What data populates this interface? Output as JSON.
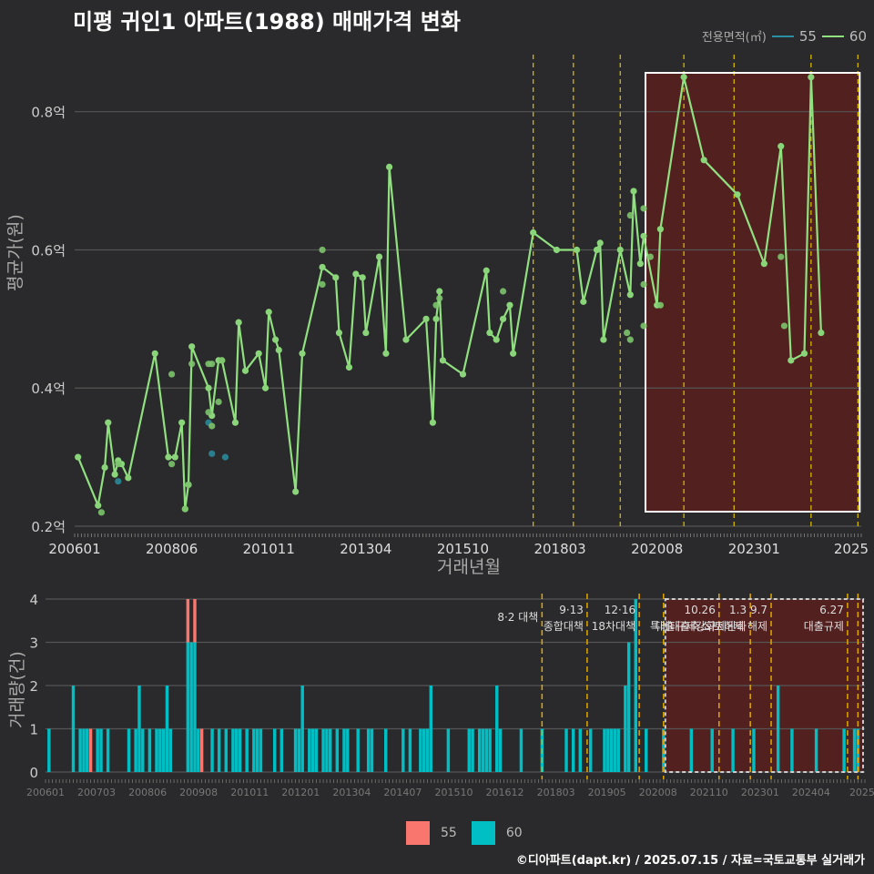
{
  "title": "미평 귀인1 아파트(1988) 매매가격 변화",
  "footer": "©디아파트(dapt.kr) / 2025.07.15 / 자료=국토교통부 실거래가",
  "colors": {
    "background": "#2a2a2c",
    "line60": "#90e080",
    "area55": "#2a6f7a",
    "bar55": "#f8766d",
    "bar60": "#00bfc4",
    "policy": "#d4b800",
    "highlight": "#5a1e1e"
  },
  "chart_data": [
    {
      "type": "line",
      "ylabel": "평균가(원)",
      "xlabel": "거래년월",
      "x_unit": "month index since 200601",
      "x_range": [
        0,
        235
      ],
      "ylim": [
        0.2,
        0.88
      ],
      "y_ticks": [
        {
          "v": 0.2,
          "label": "0.2억"
        },
        {
          "v": 0.4,
          "label": "0.4억"
        },
        {
          "v": 0.6,
          "label": "0.6억"
        },
        {
          "v": 0.8,
          "label": "0.8억"
        }
      ],
      "x_ticks": [
        "200601",
        "200806",
        "201011",
        "201304",
        "201510",
        "201803",
        "202008",
        "202301",
        "2025"
      ],
      "legend": {
        "title": "전용면적(㎡)",
        "items": [
          "55",
          "60"
        ]
      },
      "series": [
        {
          "name": "60",
          "line": [
            [
              1,
              0.3
            ],
            [
              7,
              0.23
            ],
            [
              9,
              0.285
            ],
            [
              10,
              0.35
            ],
            [
              12,
              0.275
            ],
            [
              13,
              0.295
            ],
            [
              14,
              0.29
            ],
            [
              16,
              0.27
            ],
            [
              24,
              0.45
            ],
            [
              28,
              0.3
            ],
            [
              30,
              0.3
            ],
            [
              32,
              0.35
            ],
            [
              33,
              0.225
            ],
            [
              34,
              0.26
            ],
            [
              35,
              0.46
            ],
            [
              40,
              0.4
            ],
            [
              41,
              0.36
            ],
            [
              43,
              0.44
            ],
            [
              44,
              0.44
            ],
            [
              48,
              0.35
            ],
            [
              49,
              0.495
            ],
            [
              51,
              0.425
            ],
            [
              55,
              0.45
            ],
            [
              57,
              0.4
            ],
            [
              58,
              0.51
            ],
            [
              60,
              0.47
            ],
            [
              61,
              0.455
            ],
            [
              66,
              0.25
            ],
            [
              68,
              0.45
            ],
            [
              74,
              0.575
            ],
            [
              78,
              0.56
            ],
            [
              79,
              0.48
            ],
            [
              82,
              0.43
            ],
            [
              84,
              0.565
            ],
            [
              86,
              0.56
            ],
            [
              87,
              0.48
            ],
            [
              91,
              0.59
            ],
            [
              93,
              0.45
            ],
            [
              94,
              0.72
            ],
            [
              99,
              0.47
            ],
            [
              105,
              0.5
            ],
            [
              107,
              0.35
            ],
            [
              108,
              0.5
            ],
            [
              109,
              0.54
            ],
            [
              110,
              0.44
            ],
            [
              116,
              0.42
            ],
            [
              123,
              0.57
            ],
            [
              124,
              0.48
            ],
            [
              126,
              0.47
            ],
            [
              128,
              0.5
            ],
            [
              130,
              0.52
            ],
            [
              131,
              0.45
            ],
            [
              137,
              0.625
            ],
            [
              144,
              0.6
            ],
            [
              150,
              0.6
            ],
            [
              152,
              0.525
            ],
            [
              156,
              0.6
            ],
            [
              157,
              0.61
            ],
            [
              158,
              0.47
            ],
            [
              163,
              0.6
            ],
            [
              166,
              0.535
            ],
            [
              167,
              0.685
            ],
            [
              169,
              0.58
            ],
            [
              170,
              0.62
            ],
            [
              174,
              0.52
            ],
            [
              175,
              0.63
            ],
            [
              182,
              0.85
            ],
            [
              188,
              0.73
            ],
            [
              198,
              0.68
            ],
            [
              206,
              0.58
            ],
            [
              211,
              0.75
            ],
            [
              214,
              0.44
            ],
            [
              218,
              0.45
            ],
            [
              220,
              0.85
            ],
            [
              223,
              0.48
            ]
          ],
          "points": [
            [
              8,
              0.22
            ],
            [
              13,
              0.29
            ],
            [
              29,
              0.42
            ],
            [
              29,
              0.29
            ],
            [
              33,
              0.225
            ],
            [
              34,
              0.26
            ],
            [
              35,
              0.435
            ],
            [
              40,
              0.435
            ],
            [
              41,
              0.435
            ],
            [
              40,
              0.365
            ],
            [
              41,
              0.345
            ],
            [
              43,
              0.38
            ],
            [
              44,
              0.44
            ],
            [
              74,
              0.55
            ],
            [
              74,
              0.6
            ],
            [
              108,
              0.52
            ],
            [
              109,
              0.53
            ],
            [
              128,
              0.54
            ],
            [
              165,
              0.48
            ],
            [
              166,
              0.47
            ],
            [
              166,
              0.65
            ],
            [
              170,
              0.55
            ],
            [
              170,
              0.66
            ],
            [
              170,
              0.49
            ],
            [
              172,
              0.59
            ],
            [
              175,
              0.52
            ],
            [
              211,
              0.59
            ],
            [
              212,
              0.49
            ]
          ]
        },
        {
          "name": "55",
          "points": [
            [
              13,
              0.265
            ],
            [
              40,
              0.35
            ],
            [
              41,
              0.305
            ],
            [
              45,
              0.3
            ]
          ]
        }
      ],
      "policy_lines": [
        137,
        149,
        163,
        182,
        197,
        220,
        234
      ],
      "highlight_range": [
        170,
        234
      ]
    },
    {
      "type": "bar",
      "ylabel": "거래량(건)",
      "ylim": [
        0,
        4
      ],
      "y_ticks": [
        0,
        1,
        2,
        3,
        4
      ],
      "x_ticks": [
        "200601",
        "200703",
        "200806",
        "200908",
        "201011",
        "201201",
        "201304",
        "201407",
        "201510",
        "201612",
        "201803",
        "201905",
        "202008",
        "202110",
        "202301",
        "202404",
        "2025"
      ],
      "series": [
        {
          "name": "55",
          "bars": [
            [
              13,
              1
            ],
            [
              41,
              1
            ],
            [
              43,
              1
            ],
            [
              45,
              1
            ]
          ]
        },
        {
          "name": "60",
          "bars": [
            [
              1,
              1
            ],
            [
              8,
              2
            ],
            [
              10,
              1
            ],
            [
              11,
              1
            ],
            [
              12,
              1
            ],
            [
              15,
              1
            ],
            [
              16,
              1
            ],
            [
              18,
              1
            ],
            [
              24,
              1
            ],
            [
              26,
              1
            ],
            [
              27,
              2
            ],
            [
              28,
              1
            ],
            [
              30,
              1
            ],
            [
              32,
              1
            ],
            [
              33,
              1
            ],
            [
              34,
              1
            ],
            [
              35,
              2
            ],
            [
              36,
              1
            ],
            [
              41,
              3
            ],
            [
              42,
              3
            ],
            [
              43,
              3
            ],
            [
              44,
              1
            ],
            [
              48,
              1
            ],
            [
              50,
              1
            ],
            [
              52,
              1
            ],
            [
              54,
              1
            ],
            [
              55,
              1
            ],
            [
              56,
              1
            ],
            [
              58,
              1
            ],
            [
              60,
              1
            ],
            [
              61,
              1
            ],
            [
              62,
              1
            ],
            [
              66,
              1
            ],
            [
              68,
              1
            ],
            [
              72,
              1
            ],
            [
              73,
              1
            ],
            [
              74,
              2
            ],
            [
              76,
              1
            ],
            [
              77,
              1
            ],
            [
              78,
              1
            ],
            [
              80,
              1
            ],
            [
              81,
              1
            ],
            [
              82,
              1
            ],
            [
              84,
              1
            ],
            [
              86,
              1
            ],
            [
              87,
              1
            ],
            [
              90,
              1
            ],
            [
              93,
              1
            ],
            [
              94,
              1
            ],
            [
              98,
              1
            ],
            [
              103,
              1
            ],
            [
              105,
              1
            ],
            [
              108,
              1
            ],
            [
              109,
              1
            ],
            [
              110,
              1
            ],
            [
              111,
              2
            ],
            [
              116,
              1
            ],
            [
              122,
              1
            ],
            [
              123,
              1
            ],
            [
              125,
              1
            ],
            [
              126,
              1
            ],
            [
              127,
              1
            ],
            [
              128,
              1
            ],
            [
              130,
              2
            ],
            [
              131,
              1
            ],
            [
              137,
              1
            ],
            [
              143,
              1
            ],
            [
              150,
              1
            ],
            [
              152,
              1
            ],
            [
              154,
              1
            ],
            [
              157,
              1
            ],
            [
              161,
              1
            ],
            [
              162,
              1
            ],
            [
              163,
              1
            ],
            [
              164,
              1
            ],
            [
              165,
              1
            ],
            [
              167,
              2
            ],
            [
              168,
              3
            ],
            [
              170,
              4
            ],
            [
              173,
              1
            ],
            [
              178,
              1
            ],
            [
              186,
              1
            ],
            [
              192,
              1
            ],
            [
              198,
              1
            ],
            [
              204,
              1
            ],
            [
              211,
              2
            ],
            [
              215,
              1
            ],
            [
              222,
              1
            ],
            [
              230,
              1
            ],
            [
              233,
              1
            ],
            [
              234,
              1
            ]
          ]
        }
      ],
      "policy_lines": [
        {
          "x": 143,
          "label": "8·2 대책"
        },
        {
          "x": 156,
          "label": "9·13",
          "label2": "종합대책"
        },
        {
          "x": 171,
          "label": "12·16",
          "label2": "18차대책"
        },
        {
          "x": 178,
          "label": ""
        },
        {
          "x": 194,
          "label": "10.26",
          "label2": "대출규제강화"
        },
        {
          "x": 203,
          "label": "1.3",
          "label2": "규제완화"
        },
        {
          "x": 209,
          "label": "9.7",
          "label2": "특례대출축소 토허제 해제"
        },
        {
          "x": 231,
          "label": "6.27",
          "label2": "대출규제"
        },
        {
          "x": 234,
          "label": ""
        }
      ],
      "highlight_range": [
        178,
        236
      ]
    }
  ],
  "legend_bottom": [
    "55",
    "60"
  ]
}
